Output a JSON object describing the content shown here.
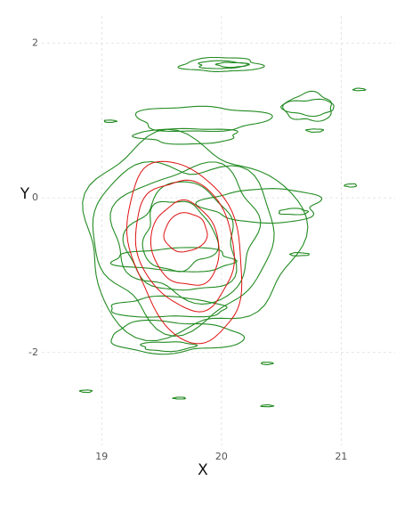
{
  "chart_data": {
    "type": "contour",
    "xlabel": "X",
    "ylabel": "Y",
    "xlim": [
      18.5,
      21.45
    ],
    "ylim": [
      -3.2,
      2.35
    ],
    "xticks": [
      19,
      20,
      21
    ],
    "yticks": [
      -2,
      0,
      2
    ],
    "grid": true,
    "legend": "none",
    "series": [
      {
        "color": "#228B22",
        "contours": [
          {
            "center": [
              20.0,
              1.72
            ],
            "rx": 0.33,
            "ry": 0.09
          },
          {
            "center": [
              20.0,
              1.72
            ],
            "rx": 0.2,
            "ry": 0.05
          },
          {
            "center": [
              20.09,
              1.72
            ],
            "rx": 0.13,
            "ry": 0.03
          },
          {
            "center": [
              20.73,
              1.17
            ],
            "rx": 0.22,
            "ry": 0.1
          },
          {
            "center": [
              20.73,
              1.17
            ],
            "rx": 0.2,
            "ry": 0.18
          },
          {
            "center": [
              21.15,
              1.4
            ],
            "rx": 0.05,
            "ry": 0.015
          },
          {
            "center": [
              19.07,
              0.99
            ],
            "rx": 0.05,
            "ry": 0.015
          },
          {
            "center": [
              20.78,
              0.87
            ],
            "rx": 0.07,
            "ry": 0.02
          },
          {
            "center": [
              21.08,
              0.16
            ],
            "rx": 0.05,
            "ry": 0.02
          },
          {
            "center": [
              20.6,
              -0.18
            ],
            "rx": 0.12,
            "ry": 0.04
          },
          {
            "center": [
              20.65,
              -0.73
            ],
            "rx": 0.08,
            "ry": 0.02
          },
          {
            "center": [
              20.38,
              -2.14
            ],
            "rx": 0.05,
            "ry": 0.015
          },
          {
            "center": [
              18.87,
              -2.5
            ],
            "rx": 0.05,
            "ry": 0.015
          },
          {
            "center": [
              19.65,
              -2.59
            ],
            "rx": 0.05,
            "ry": 0.012
          },
          {
            "center": [
              20.38,
              -2.69
            ],
            "rx": 0.05,
            "ry": 0.012
          },
          {
            "center": [
              19.72,
              -0.5
            ],
            "rx": 0.9,
            "ry": 1.25
          },
          {
            "center": [
              19.68,
              -0.55
            ],
            "rx": 0.75,
            "ry": 1.05
          },
          {
            "center": [
              19.72,
              -0.45
            ],
            "rx": 0.6,
            "ry": 0.85
          },
          {
            "center": [
              19.68,
              -0.55
            ],
            "rx": 0.45,
            "ry": 0.7
          },
          {
            "center": [
              19.64,
              -0.5
            ],
            "rx": 0.3,
            "ry": 0.45
          },
          {
            "center": [
              19.82,
              1.02
            ],
            "rx": 0.55,
            "ry": 0.16
          },
          {
            "center": [
              19.72,
              0.8
            ],
            "rx": 0.42,
            "ry": 0.1
          },
          {
            "center": [
              19.62,
              -0.8
            ],
            "rx": 0.5,
            "ry": 0.15
          },
          {
            "center": [
              19.55,
              -1.42
            ],
            "rx": 0.48,
            "ry": 0.13
          },
          {
            "center": [
              19.6,
              -1.8
            ],
            "rx": 0.55,
            "ry": 0.2
          },
          {
            "center": [
              19.55,
              -1.92
            ],
            "rx": 0.22,
            "ry": 0.06
          },
          {
            "center": [
              20.35,
              -0.1
            ],
            "rx": 0.48,
            "ry": 0.22
          }
        ]
      },
      {
        "color": "#DD1111",
        "contours": [
          {
            "center": [
              19.7,
              -0.68
            ],
            "rx": 0.45,
            "ry": 1.2,
            "tilt_deg": -15
          },
          {
            "center": [
              19.7,
              -0.6
            ],
            "rx": 0.4,
            "ry": 0.85,
            "tilt_deg": -15
          },
          {
            "center": [
              19.7,
              -0.6
            ],
            "rx": 0.28,
            "ry": 0.55,
            "tilt_deg": -14
          },
          {
            "center": [
              19.7,
              -0.45
            ],
            "rx": 0.18,
            "ry": 0.25,
            "tilt_deg": -12
          }
        ]
      }
    ]
  }
}
